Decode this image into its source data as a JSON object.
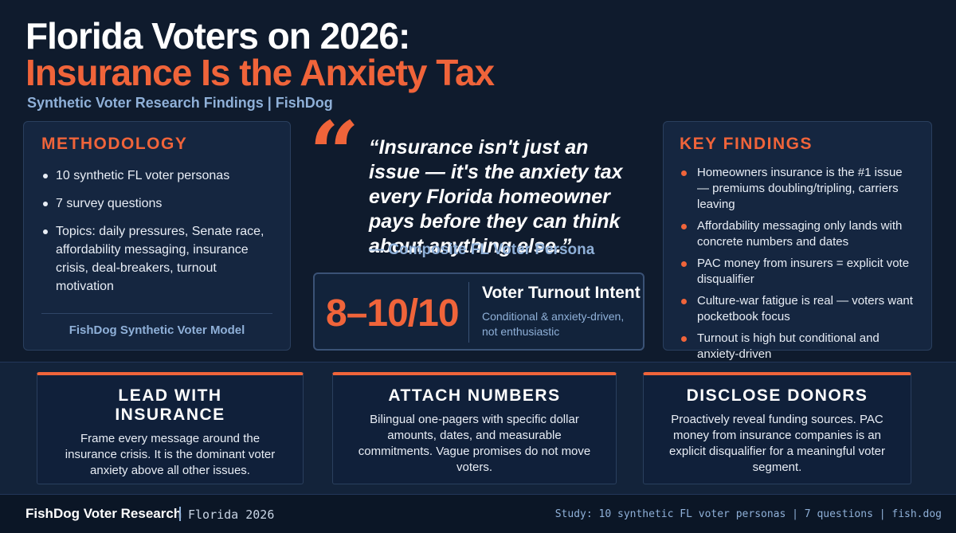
{
  "header": {
    "title_line1": "Florida Voters on 2026:",
    "title_line2": "Insurance Is the Anxiety Tax",
    "subtitle": "Synthetic Voter Research Findings | FishDog"
  },
  "methodology": {
    "heading": "METHODOLOGY",
    "items": [
      "10 synthetic FL voter personas",
      "7 survey questions",
      "Topics: daily pressures, Senate race, affordability messaging, insurance crisis, deal-breakers, turnout motivation"
    ],
    "footer": "FishDog Synthetic Voter Model"
  },
  "quote": {
    "mark": "“",
    "text": "“Insurance isn't just an issue — it's the anxiety tax every Florida homeowner pays before they can think about anything else.”",
    "attribution": "— Composite FL Voter Persona"
  },
  "stat": {
    "value": "8–10/10",
    "label": "Voter Turnout Intent",
    "note": "Conditional & anxiety-driven, not enthusiastic"
  },
  "key_findings": {
    "heading": "KEY FINDINGS",
    "items": [
      "Homeowners insurance is the #1 issue — premiums doubling/tripling, carriers leaving",
      "Affordability messaging only lands with concrete numbers and dates",
      "PAC money from insurers = explicit vote disqualifier",
      "Culture-war fatigue is real — voters want pocketbook focus",
      "Turnout is high but conditional and anxiety-driven"
    ]
  },
  "recommendations": [
    {
      "title": "LEAD WITH INSURANCE",
      "text": "Frame every message around the insurance crisis. It is the dominant voter anxiety above all other issues."
    },
    {
      "title": "ATTACH NUMBERS",
      "text": "Bilingual one-pagers with specific dollar amounts, dates, and measurable commitments. Vague promises do not move voters."
    },
    {
      "title": "DISCLOSE DONORS",
      "text": "Proactively reveal funding sources. PAC money from insurance companies is an explicit disqualifier for a meaningful voter segment."
    }
  ],
  "footer": {
    "brand": "FishDog Voter Research",
    "sub": "Florida 2026",
    "right": "Study: 10 synthetic FL voter personas | 7 questions | fish.dog"
  }
}
